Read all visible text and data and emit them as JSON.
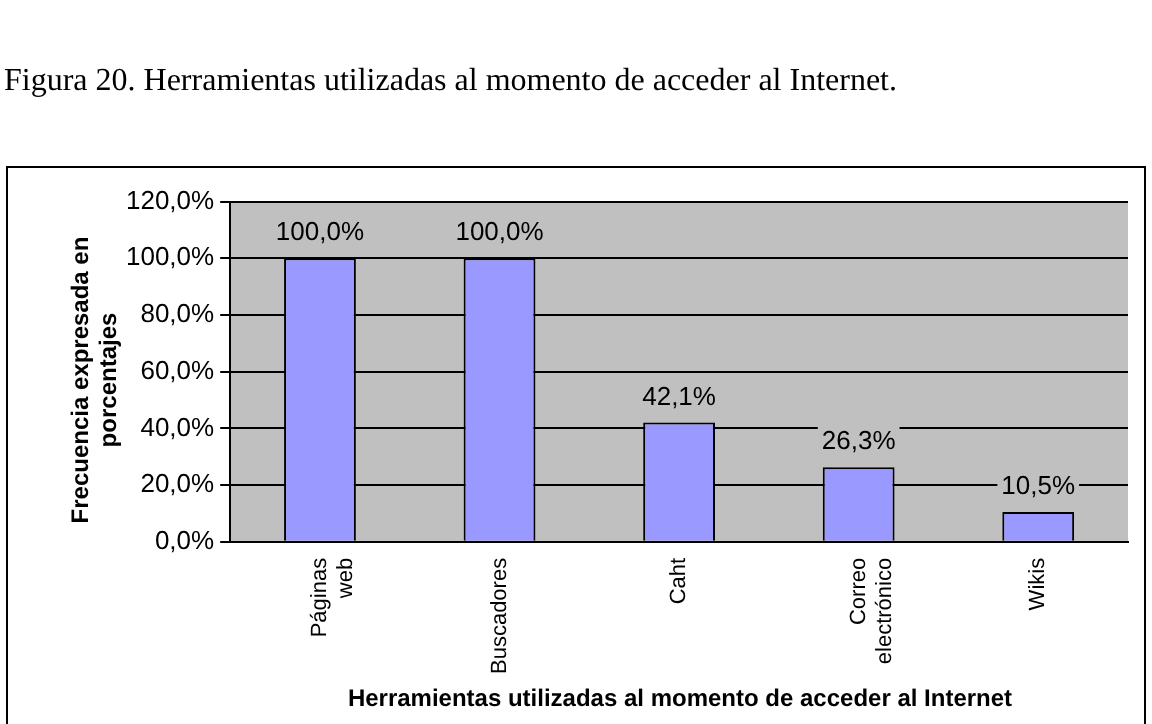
{
  "chart_data": {
    "type": "bar",
    "title": "Figura 20. Herramientas utilizadas al momento de acceder al Internet.",
    "xlabel": "Herramientas utilizadas al momento de acceder al Internet",
    "ylabel": "Frecuencia expresada en porcentajes",
    "categories": [
      "Páginas web",
      "Buscadores",
      "Caht",
      "Correo electrónico",
      "Wikis"
    ],
    "values": [
      100,
      100,
      42.1,
      26.3,
      10.5
    ],
    "value_labels": [
      "100,0%",
      "100,0%",
      "42,1%",
      "26,3%",
      "10,5%"
    ],
    "color": "#9999ff",
    "ylim": [
      0,
      120
    ],
    "yticks": [
      {
        "value": 0,
        "label": "0,0%"
      },
      {
        "value": 20,
        "label": "20,0%"
      },
      {
        "value": 40,
        "label": "40,0%"
      },
      {
        "value": 60,
        "label": "60,0%"
      },
      {
        "value": 80,
        "label": "80,0%"
      },
      {
        "value": 100,
        "label": "100,0%"
      },
      {
        "value": 120,
        "label": "120,0%"
      }
    ],
    "grid": "y",
    "legend": false
  }
}
